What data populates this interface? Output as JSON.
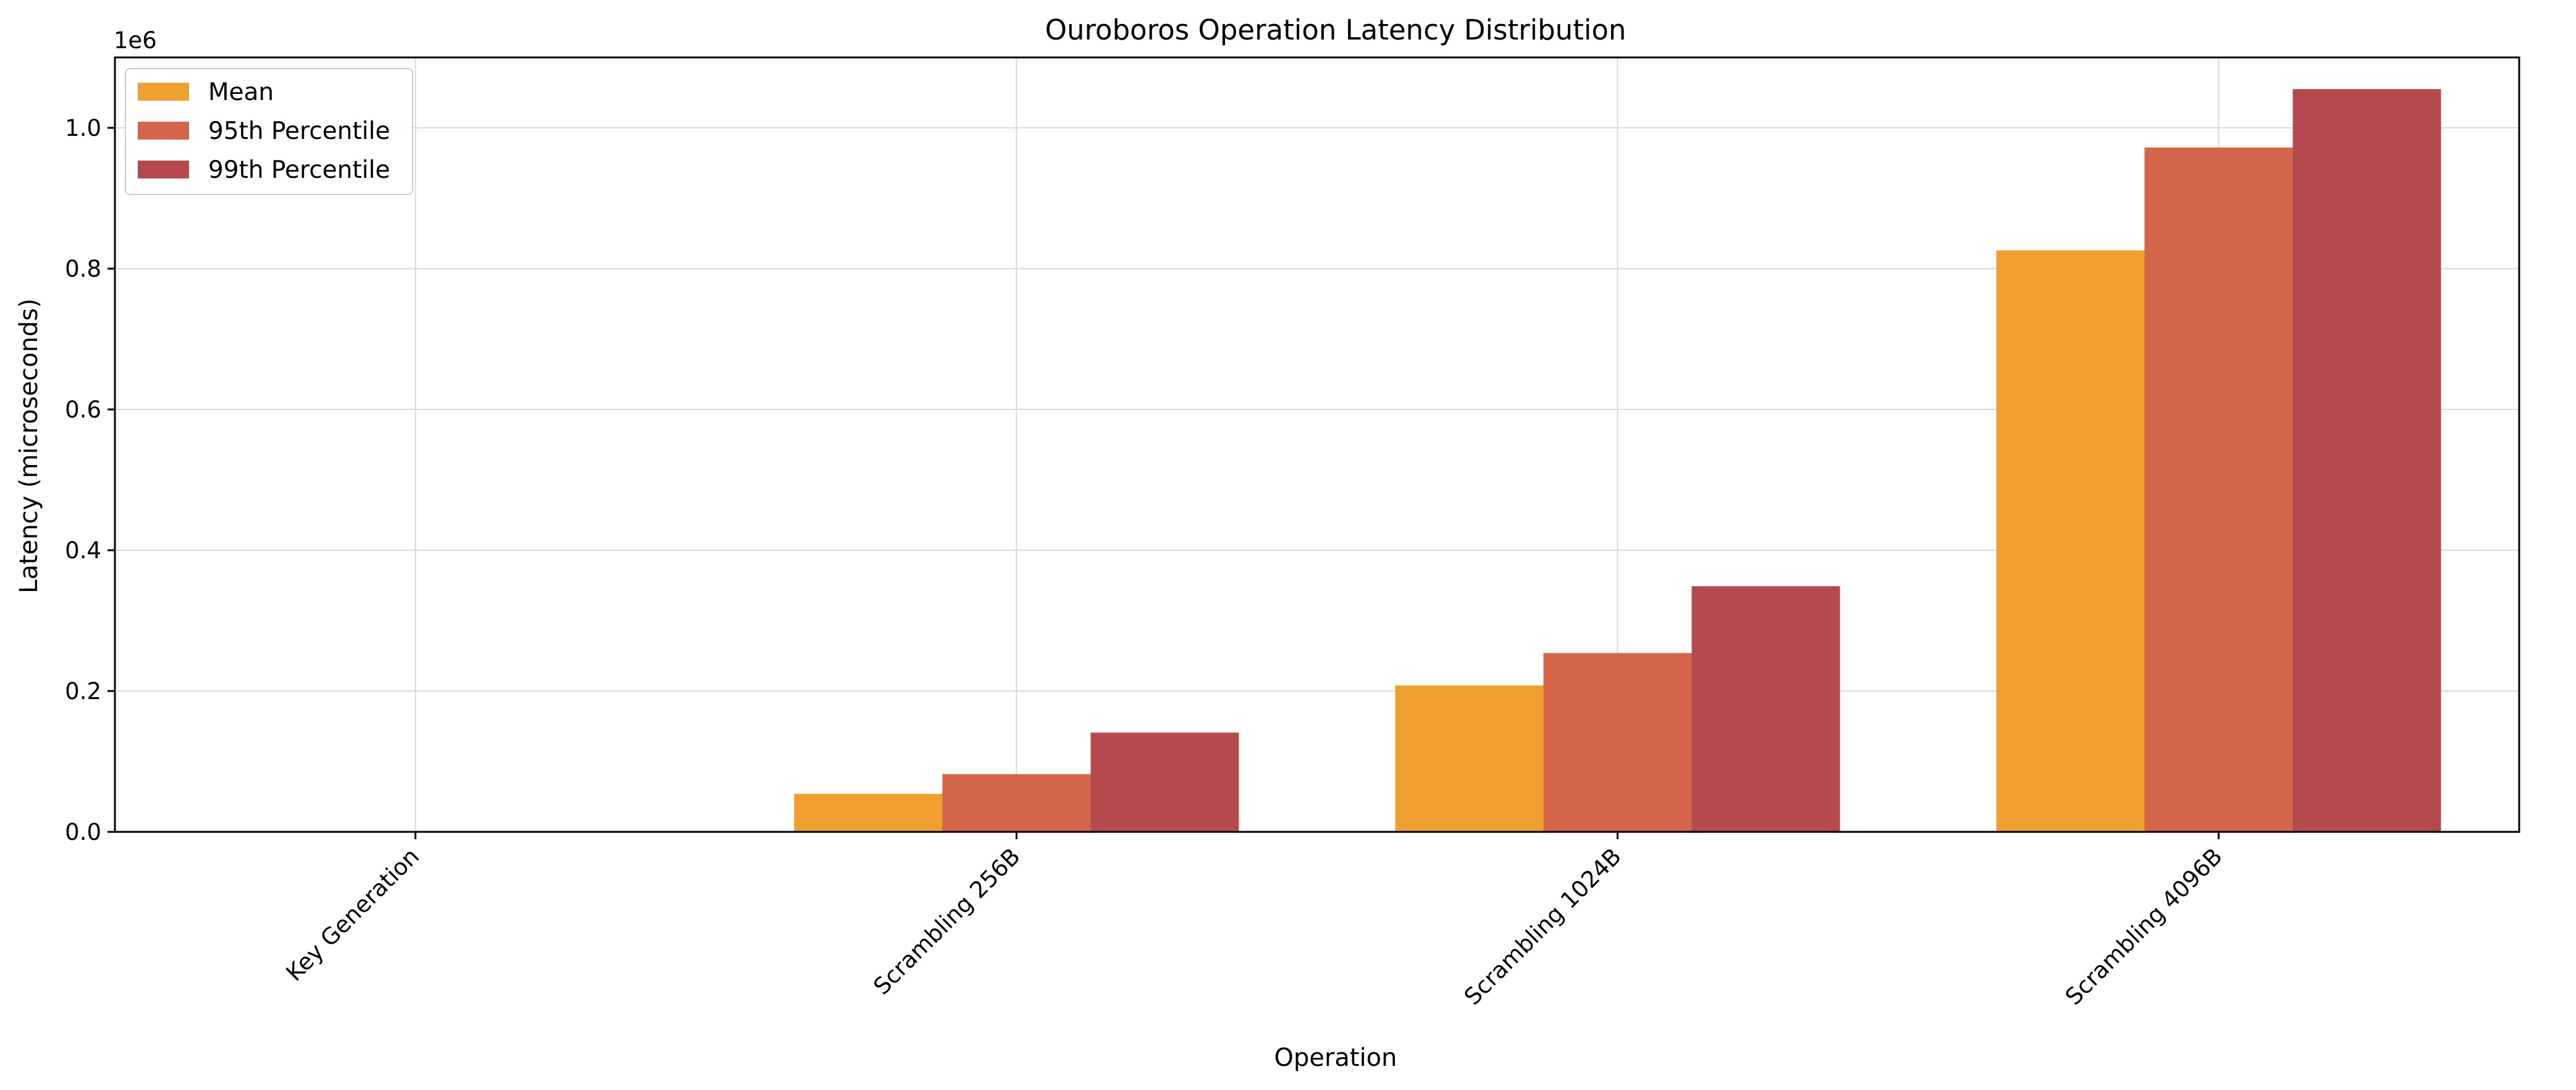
{
  "chart_data": {
    "type": "bar",
    "title": "Ouroboros Operation Latency Distribution",
    "xlabel": "Operation",
    "ylabel": "Latency (microseconds)",
    "y_offset_label": "1e6",
    "y_scale_factor": 1000000,
    "ylim": [
      0,
      1100000
    ],
    "yticks": [
      0,
      200000,
      400000,
      600000,
      800000,
      1000000
    ],
    "ytick_labels": [
      "0.0",
      "0.2",
      "0.4",
      "0.6",
      "0.8",
      "1.0"
    ],
    "grid": true,
    "legend_position": "top-left",
    "categories": [
      "Key Generation",
      "Scrambling 256B",
      "Scrambling 1024B",
      "Scrambling 4096B"
    ],
    "series": [
      {
        "name": "Mean",
        "color": "#f0a030",
        "values": [
          0,
          54000,
          208000,
          826000
        ]
      },
      {
        "name": "95th Percentile",
        "color": "#d4644a",
        "values": [
          0,
          82000,
          254000,
          972000
        ]
      },
      {
        "name": "99th Percentile",
        "color": "#b44a4d",
        "values": [
          0,
          141000,
          349000,
          1055000
        ]
      }
    ]
  }
}
